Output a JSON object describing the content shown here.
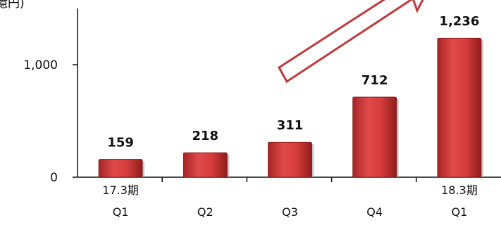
{
  "chart_data": {
    "type": "bar",
    "unit_label": "億円)",
    "categories": [
      [
        "17.3期",
        "Q1"
      ],
      [
        "",
        "Q2"
      ],
      [
        "",
        "Q3"
      ],
      [
        "",
        "Q4"
      ],
      [
        "18.3期",
        "Q1"
      ]
    ],
    "values": [
      159,
      218,
      311,
      712,
      1236
    ],
    "data_labels": [
      "159",
      "218",
      "311",
      "712",
      "1,236"
    ],
    "y_ticks": [
      {
        "value": 0,
        "label": "0"
      },
      {
        "value": 1000,
        "label": "1,000"
      }
    ],
    "ylim": [
      0,
      1500
    ],
    "grid": false,
    "bar_color": "#d33b3b",
    "bar_dark": "#8f1c1c",
    "arrow_color": "#c0393b",
    "annotation": "upward-trend-arrow"
  }
}
